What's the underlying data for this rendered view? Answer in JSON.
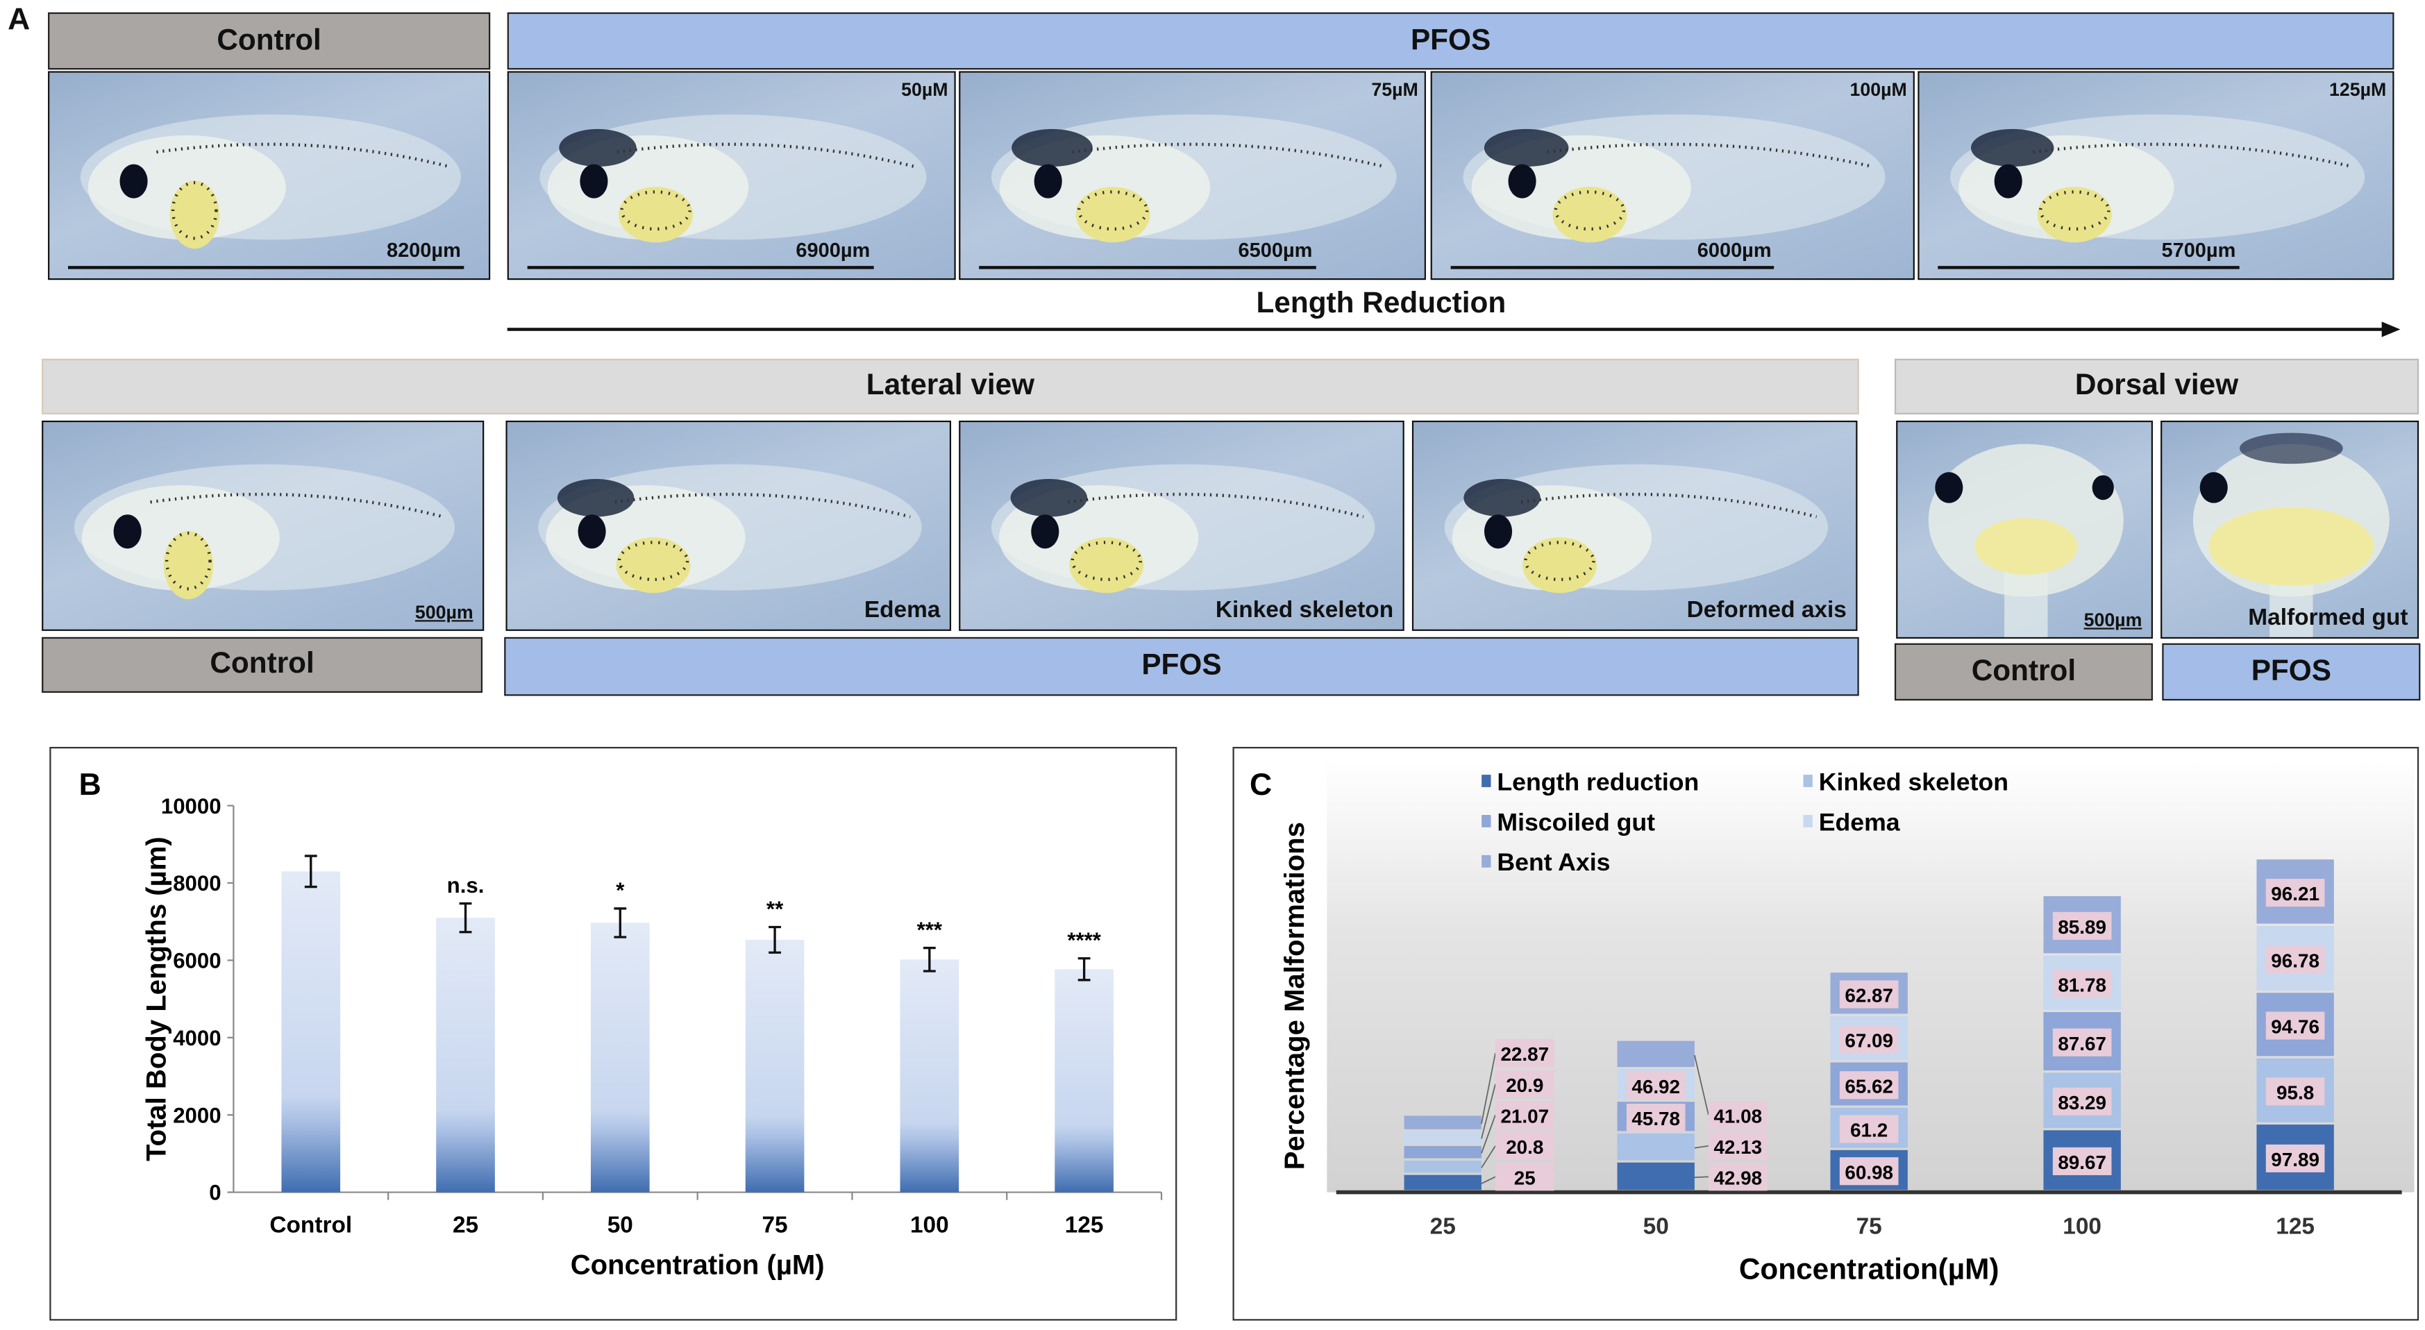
{
  "panel_a": {
    "label": "A",
    "top_headers": {
      "control": "Control",
      "pfos": "PFOS"
    },
    "top_photos": [
      {
        "scale": "8200µm",
        "conc": ""
      },
      {
        "scale": "6900µm",
        "conc": "50µM"
      },
      {
        "scale": "6500µm",
        "conc": "75µM"
      },
      {
        "scale": "6000µm",
        "conc": "100µM"
      },
      {
        "scale": "5700µm",
        "conc": "125µM"
      }
    ],
    "arrow_label": "Length Reduction",
    "lateral_header": "Lateral view",
    "dorsal_header": "Dorsal view",
    "bottom_photos": [
      {
        "caption": "500µm"
      },
      {
        "caption": "Edema"
      },
      {
        "caption": "Kinked skeleton"
      },
      {
        "caption": "Deformed axis"
      },
      {
        "caption": "500µm"
      },
      {
        "caption": "Malformed gut"
      }
    ],
    "bottom_labels": {
      "lat_control": "Control",
      "lat_pfos": "PFOS",
      "dor_control": "Control",
      "dor_pfos": "PFOS"
    }
  },
  "chart_data": [
    {
      "panel": "B",
      "type": "bar",
      "categories": [
        "Control",
        "25",
        "50",
        "75",
        "100",
        "125"
      ],
      "values": [
        8300,
        7100,
        6970,
        6530,
        6020,
        5770
      ],
      "errors": [
        400,
        370,
        370,
        330,
        300,
        280
      ],
      "significance": [
        "",
        "n.s.",
        "*",
        "**",
        "***",
        "****"
      ],
      "xlabel": "Concentration (µM)",
      "ylabel": "Total Body Lengths (µm)",
      "ylim": [
        0,
        10000
      ],
      "yticks": [
        0,
        2000,
        4000,
        6000,
        8000,
        10000
      ],
      "color": "#3f6db0",
      "grid": false
    },
    {
      "panel": "C",
      "type": "bar",
      "stacked": true,
      "categories": [
        "25",
        "50",
        "75",
        "100",
        "125"
      ],
      "series": [
        {
          "name": "Length reduction",
          "color": "#3f6db0",
          "values": [
            25,
            42.98,
            60.98,
            89.67,
            97.89
          ]
        },
        {
          "name": "Kinked skeleton",
          "color": "#a9c2e6",
          "values": [
            20.8,
            42.13,
            61.2,
            83.29,
            95.8
          ]
        },
        {
          "name": "Miscoiled gut",
          "color": "#8ea6d8",
          "values": [
            21.07,
            45.78,
            65.62,
            87.67,
            94.76
          ]
        },
        {
          "name": "Edema",
          "color": "#c7d8ef",
          "values": [
            20.9,
            46.92,
            67.09,
            81.78,
            96.78
          ]
        },
        {
          "name": "Bent Axis",
          "color": "#98acd9",
          "values": [
            22.87,
            41.08,
            62.87,
            85.89,
            96.21
          ]
        }
      ],
      "xlabel": "Concentration(µM)",
      "ylabel": "Percentage Malformations",
      "legend": "top",
      "grid": false
    }
  ]
}
